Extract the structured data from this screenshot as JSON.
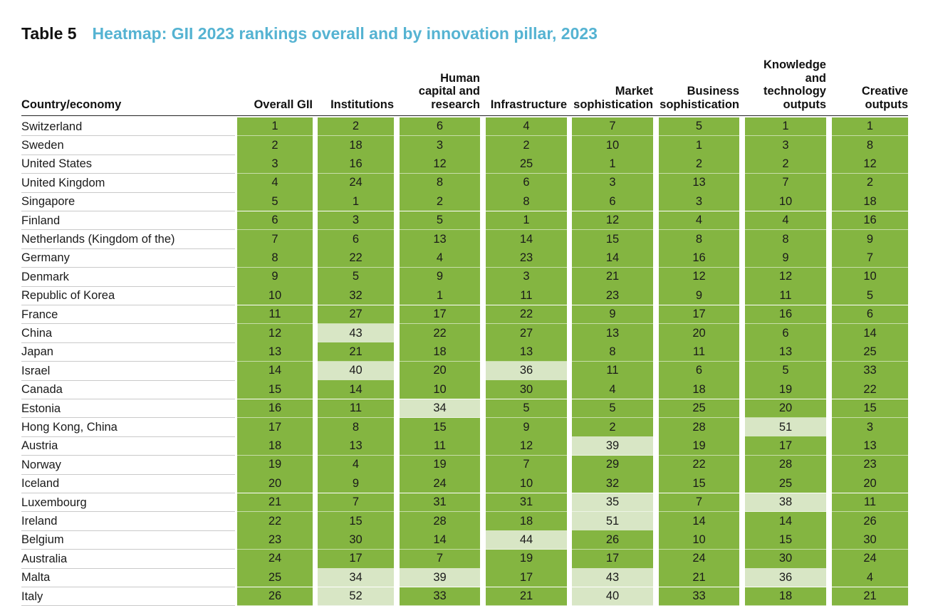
{
  "title": {
    "label": "Table 5",
    "text": "Heatmap: GII 2023 rankings overall and by innovation pillar, 2023"
  },
  "colors": {
    "top": "#84b541",
    "lower": "#d8e6c5",
    "title": "#55b3d2"
  },
  "columns": [
    {
      "key": "country",
      "lines": [
        "Country/economy"
      ]
    },
    {
      "key": "overall",
      "lines": [
        "Overall GII"
      ]
    },
    {
      "key": "institutions",
      "lines": [
        "Institutions"
      ]
    },
    {
      "key": "human",
      "lines": [
        "Human",
        "capital and",
        "research"
      ]
    },
    {
      "key": "infra",
      "lines": [
        "Infrastructure"
      ]
    },
    {
      "key": "market",
      "lines": [
        "Market",
        "sophistication"
      ]
    },
    {
      "key": "business",
      "lines": [
        "Business",
        "sophistication"
      ]
    },
    {
      "key": "knowledge",
      "lines": [
        "Knowledge",
        "and",
        "technology",
        "outputs"
      ]
    },
    {
      "key": "creative",
      "lines": [
        "Creative",
        "outputs"
      ]
    }
  ],
  "rows": [
    {
      "country": "Switzerland",
      "values": [
        1,
        2,
        6,
        4,
        7,
        5,
        1,
        1
      ]
    },
    {
      "country": "Sweden",
      "values": [
        2,
        18,
        3,
        2,
        10,
        1,
        3,
        8
      ]
    },
    {
      "country": "United States",
      "values": [
        3,
        16,
        12,
        25,
        1,
        2,
        2,
        12
      ]
    },
    {
      "country": "United Kingdom",
      "values": [
        4,
        24,
        8,
        6,
        3,
        13,
        7,
        2
      ]
    },
    {
      "country": "Singapore",
      "values": [
        5,
        1,
        2,
        8,
        6,
        3,
        10,
        18
      ]
    },
    {
      "country": "Finland",
      "values": [
        6,
        3,
        5,
        1,
        12,
        4,
        4,
        16
      ]
    },
    {
      "country": "Netherlands (Kingdom of the)",
      "values": [
        7,
        6,
        13,
        14,
        15,
        8,
        8,
        9
      ]
    },
    {
      "country": "Germany",
      "values": [
        8,
        22,
        4,
        23,
        14,
        16,
        9,
        7
      ]
    },
    {
      "country": "Denmark",
      "values": [
        9,
        5,
        9,
        3,
        21,
        12,
        12,
        10
      ]
    },
    {
      "country": "Republic of Korea",
      "values": [
        10,
        32,
        1,
        11,
        23,
        9,
        11,
        5
      ]
    },
    {
      "country": "France",
      "values": [
        11,
        27,
        17,
        22,
        9,
        17,
        16,
        6
      ]
    },
    {
      "country": "China",
      "values": [
        12,
        43,
        22,
        27,
        13,
        20,
        6,
        14
      ]
    },
    {
      "country": "Japan",
      "values": [
        13,
        21,
        18,
        13,
        8,
        11,
        13,
        25
      ]
    },
    {
      "country": "Israel",
      "values": [
        14,
        40,
        20,
        36,
        11,
        6,
        5,
        33
      ]
    },
    {
      "country": "Canada",
      "values": [
        15,
        14,
        10,
        30,
        4,
        18,
        19,
        22
      ]
    },
    {
      "country": "Estonia",
      "values": [
        16,
        11,
        34,
        5,
        5,
        25,
        20,
        15
      ]
    },
    {
      "country": "Hong Kong, China",
      "values": [
        17,
        8,
        15,
        9,
        2,
        28,
        51,
        3
      ]
    },
    {
      "country": "Austria",
      "values": [
        18,
        13,
        11,
        12,
        39,
        19,
        17,
        13
      ]
    },
    {
      "country": "Norway",
      "values": [
        19,
        4,
        19,
        7,
        29,
        22,
        28,
        23
      ]
    },
    {
      "country": "Iceland",
      "values": [
        20,
        9,
        24,
        10,
        32,
        15,
        25,
        20
      ]
    },
    {
      "country": "Luxembourg",
      "values": [
        21,
        7,
        31,
        31,
        35,
        7,
        38,
        11
      ]
    },
    {
      "country": "Ireland",
      "values": [
        22,
        15,
        28,
        18,
        51,
        14,
        14,
        26
      ]
    },
    {
      "country": "Belgium",
      "values": [
        23,
        30,
        14,
        44,
        26,
        10,
        15,
        30
      ]
    },
    {
      "country": "Australia",
      "values": [
        24,
        17,
        7,
        19,
        17,
        24,
        30,
        24
      ]
    },
    {
      "country": "Malta",
      "values": [
        25,
        34,
        39,
        17,
        43,
        21,
        36,
        4
      ]
    },
    {
      "country": "Italy",
      "values": [
        26,
        52,
        33,
        21,
        40,
        33,
        18,
        21
      ]
    }
  ]
}
